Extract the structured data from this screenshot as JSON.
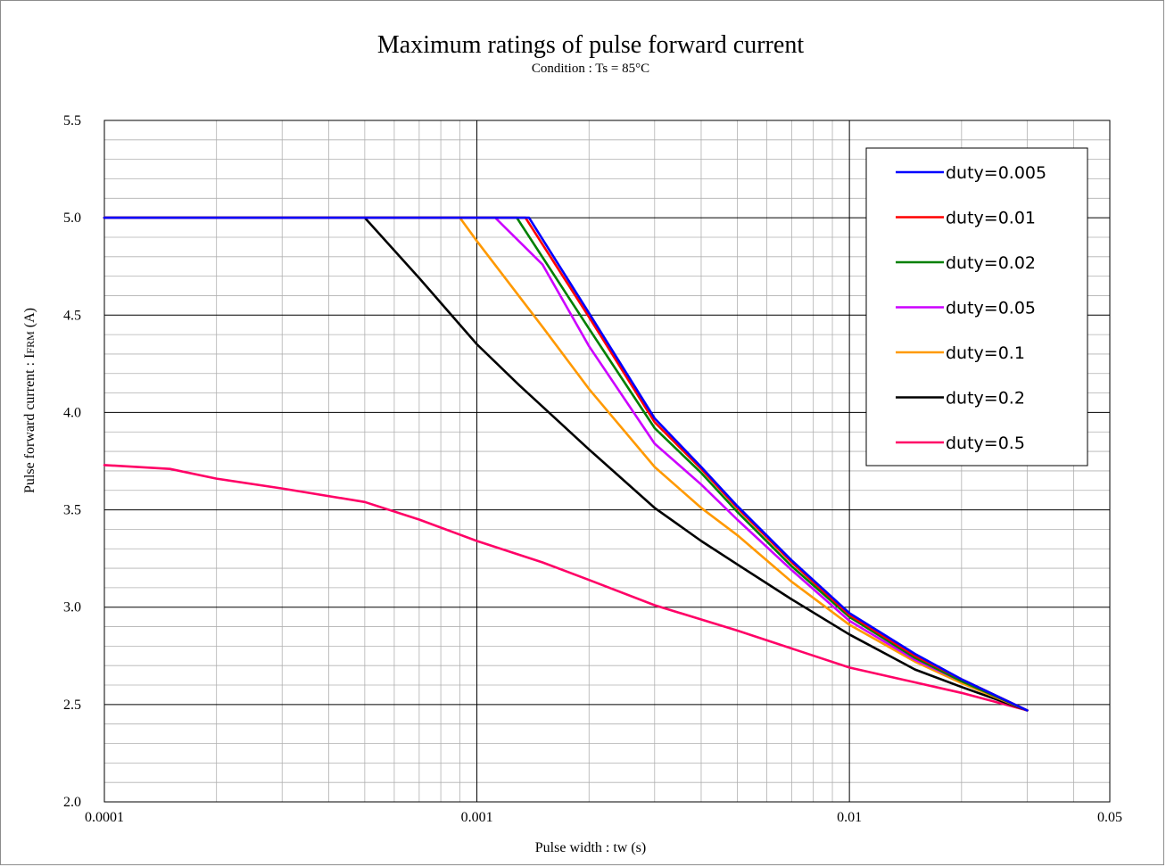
{
  "chart_data": {
    "type": "line",
    "title": "Maximum ratings of pulse forward current",
    "subtitle": "Condition : Ts = 85°C",
    "xlabel": "Pulse width : tw (s)",
    "ylabel_main": "Pulse forward current : I",
    "ylabel_sub": "FRM",
    "ylabel_unit": " (A)",
    "xscale": "log",
    "xlim": [
      0.0001,
      0.05
    ],
    "ylim": [
      2.0,
      5.5
    ],
    "x_tick_labels": [
      {
        "value": 0.0001,
        "label": "0.0001"
      },
      {
        "value": 0.001,
        "label": "0.001"
      },
      {
        "value": 0.01,
        "label": "0.01"
      },
      {
        "value": 0.05,
        "label": "0.05"
      }
    ],
    "y_tick_labels": [
      {
        "value": 2.0,
        "label": "2.0"
      },
      {
        "value": 2.5,
        "label": "2.5"
      },
      {
        "value": 3.0,
        "label": "3.0"
      },
      {
        "value": 3.5,
        "label": "3.5"
      },
      {
        "value": 4.0,
        "label": "4.0"
      },
      {
        "value": 4.5,
        "label": "4.5"
      },
      {
        "value": 5.0,
        "label": "5.0"
      },
      {
        "value": 5.5,
        "label": "5.5"
      }
    ],
    "grid": true,
    "legend_position": "top-right",
    "series": [
      {
        "name": "duty=0.005",
        "color": "#0000ff",
        "points": [
          [
            0.0001,
            5.0
          ],
          [
            0.00138,
            5.0
          ],
          [
            0.002,
            4.51
          ],
          [
            0.003,
            3.97
          ],
          [
            0.004,
            3.72
          ],
          [
            0.005,
            3.52
          ],
          [
            0.007,
            3.24
          ],
          [
            0.01,
            2.97
          ],
          [
            0.015,
            2.76
          ],
          [
            0.02,
            2.63
          ],
          [
            0.03,
            2.47
          ]
        ]
      },
      {
        "name": "duty=0.01",
        "color": "#ff0000",
        "points": [
          [
            0.0001,
            5.0
          ],
          [
            0.00135,
            5.0
          ],
          [
            0.002,
            4.49
          ],
          [
            0.003,
            3.95
          ],
          [
            0.004,
            3.71
          ],
          [
            0.005,
            3.51
          ],
          [
            0.007,
            3.23
          ],
          [
            0.01,
            2.96
          ],
          [
            0.015,
            2.75
          ],
          [
            0.02,
            2.63
          ],
          [
            0.03,
            2.47
          ]
        ]
      },
      {
        "name": "duty=0.02",
        "color": "#008000",
        "points": [
          [
            0.0001,
            5.0
          ],
          [
            0.00128,
            5.0
          ],
          [
            0.002,
            4.43
          ],
          [
            0.003,
            3.92
          ],
          [
            0.004,
            3.69
          ],
          [
            0.005,
            3.49
          ],
          [
            0.007,
            3.21
          ],
          [
            0.01,
            2.95
          ],
          [
            0.015,
            2.74
          ],
          [
            0.02,
            2.62
          ],
          [
            0.03,
            2.47
          ]
        ]
      },
      {
        "name": "duty=0.05",
        "color": "#cc00ff",
        "points": [
          [
            0.0001,
            5.0
          ],
          [
            0.00112,
            5.0
          ],
          [
            0.0015,
            4.76
          ],
          [
            0.002,
            4.34
          ],
          [
            0.003,
            3.84
          ],
          [
            0.004,
            3.63
          ],
          [
            0.005,
            3.45
          ],
          [
            0.007,
            3.19
          ],
          [
            0.01,
            2.93
          ],
          [
            0.015,
            2.73
          ],
          [
            0.02,
            2.62
          ],
          [
            0.03,
            2.47
          ]
        ]
      },
      {
        "name": "duty=0.1",
        "color": "#ff9900",
        "points": [
          [
            0.0001,
            5.0
          ],
          [
            0.0009,
            5.0
          ],
          [
            0.001,
            4.88
          ],
          [
            0.0015,
            4.44
          ],
          [
            0.002,
            4.12
          ],
          [
            0.003,
            3.72
          ],
          [
            0.004,
            3.51
          ],
          [
            0.005,
            3.37
          ],
          [
            0.007,
            3.13
          ],
          [
            0.01,
            2.91
          ],
          [
            0.015,
            2.72
          ],
          [
            0.02,
            2.61
          ],
          [
            0.03,
            2.47
          ]
        ]
      },
      {
        "name": "duty=0.2",
        "color": "#000000",
        "points": [
          [
            0.0001,
            5.0
          ],
          [
            0.0005,
            5.0
          ],
          [
            0.0007,
            4.69
          ],
          [
            0.001,
            4.35
          ],
          [
            0.0013,
            4.14
          ],
          [
            0.002,
            3.81
          ],
          [
            0.003,
            3.51
          ],
          [
            0.004,
            3.34
          ],
          [
            0.005,
            3.22
          ],
          [
            0.007,
            3.04
          ],
          [
            0.01,
            2.86
          ],
          [
            0.015,
            2.68
          ],
          [
            0.02,
            2.59
          ],
          [
            0.03,
            2.47
          ]
        ]
      },
      {
        "name": "duty=0.5",
        "color": "#ff0066",
        "points": [
          [
            0.0001,
            3.73
          ],
          [
            0.00015,
            3.71
          ],
          [
            0.0002,
            3.66
          ],
          [
            0.0003,
            3.61
          ],
          [
            0.0005,
            3.54
          ],
          [
            0.0007,
            3.45
          ],
          [
            0.001,
            3.34
          ],
          [
            0.0015,
            3.23
          ],
          [
            0.002,
            3.14
          ],
          [
            0.003,
            3.01
          ],
          [
            0.005,
            2.88
          ],
          [
            0.01,
            2.69
          ],
          [
            0.02,
            2.56
          ],
          [
            0.03,
            2.47
          ]
        ]
      }
    ]
  }
}
